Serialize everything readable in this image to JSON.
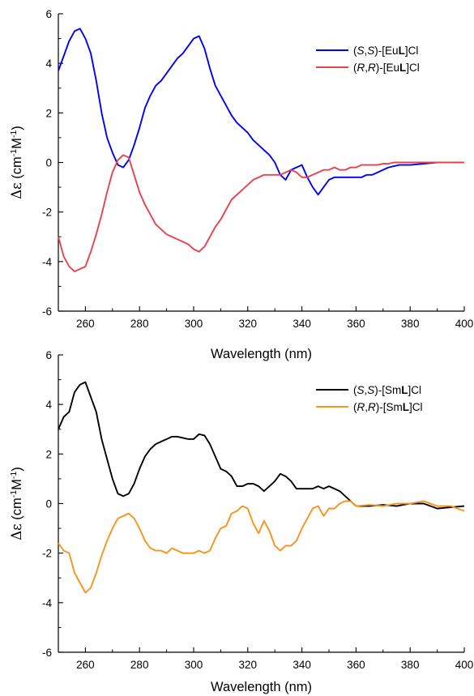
{
  "chart_data": [
    {
      "type": "line",
      "xlabel": "Wavelength (nm)",
      "ylabel": {
        "symbol": "Δε",
        "text": " (cm",
        "sup1": "-1",
        "mid": "M",
        "sup2": "-1",
        "end": ")"
      },
      "xlim": [
        250,
        400
      ],
      "ylim": [
        -6,
        6
      ],
      "xticks": [
        260,
        280,
        300,
        320,
        340,
        360,
        380,
        400
      ],
      "yticks": [
        -6,
        -4,
        -2,
        0,
        2,
        4,
        6
      ],
      "grid": false,
      "legend_position": "top-right",
      "series": [
        {
          "name": "(S,S)-[EuL]Cl",
          "name_parts": [
            {
              "t": "(",
              "s": "n"
            },
            {
              "t": "S",
              "s": "i"
            },
            {
              "t": ",",
              "s": "n"
            },
            {
              "t": "S",
              "s": "i"
            },
            {
              "t": ")-[Eu",
              "s": "n"
            },
            {
              "t": "L",
              "s": "b"
            },
            {
              "t": "]Cl",
              "s": "n"
            }
          ],
          "color": "#0000ff",
          "x": [
            250,
            252,
            254,
            256,
            258,
            260,
            262,
            264,
            266,
            268,
            270,
            272,
            274,
            276,
            278,
            280,
            282,
            284,
            286,
            288,
            290,
            292,
            294,
            296,
            298,
            300,
            302,
            304,
            306,
            308,
            310,
            312,
            314,
            316,
            318,
            320,
            322,
            324,
            326,
            328,
            330,
            332,
            334,
            336,
            338,
            340,
            342,
            344,
            346,
            348,
            350,
            352,
            354,
            356,
            358,
            360,
            362,
            364,
            366,
            368,
            370,
            372,
            374,
            376,
            378,
            380,
            385,
            390,
            395,
            400
          ],
          "y": [
            3.7,
            4.3,
            4.9,
            5.3,
            5.4,
            5.0,
            4.4,
            3.3,
            2.0,
            1.0,
            0.4,
            -0.1,
            -0.2,
            0.1,
            0.7,
            1.4,
            2.2,
            2.7,
            3.1,
            3.3,
            3.6,
            3.9,
            4.2,
            4.4,
            4.7,
            5.0,
            5.1,
            4.6,
            3.8,
            3.1,
            2.7,
            2.3,
            1.9,
            1.6,
            1.4,
            1.2,
            0.9,
            0.7,
            0.5,
            0.3,
            0.0,
            -0.5,
            -0.7,
            -0.3,
            -0.2,
            -0.1,
            -0.6,
            -1.0,
            -1.3,
            -1.0,
            -0.7,
            -0.6,
            -0.6,
            -0.6,
            -0.6,
            -0.6,
            -0.6,
            -0.5,
            -0.5,
            -0.4,
            -0.3,
            -0.2,
            -0.15,
            -0.1,
            -0.1,
            -0.1,
            -0.05,
            0.0,
            0.0,
            0.0
          ]
        },
        {
          "name": "(R,R)-[EuL]Cl",
          "name_parts": [
            {
              "t": "(",
              "s": "n"
            },
            {
              "t": "R",
              "s": "i"
            },
            {
              "t": ",",
              "s": "n"
            },
            {
              "t": "R",
              "s": "i"
            },
            {
              "t": ")-[Eu",
              "s": "n"
            },
            {
              "t": "L",
              "s": "b"
            },
            {
              "t": "]Cl",
              "s": "n"
            }
          ],
          "color": "#e8434a",
          "x": [
            250,
            252,
            254,
            256,
            258,
            260,
            262,
            264,
            266,
            268,
            270,
            272,
            274,
            276,
            278,
            280,
            282,
            284,
            286,
            288,
            290,
            292,
            294,
            296,
            298,
            300,
            302,
            304,
            306,
            308,
            310,
            312,
            314,
            316,
            318,
            320,
            322,
            324,
            326,
            328,
            330,
            332,
            334,
            336,
            338,
            340,
            342,
            344,
            346,
            348,
            350,
            352,
            354,
            356,
            358,
            360,
            362,
            364,
            366,
            368,
            370,
            372,
            374,
            376,
            378,
            380,
            385,
            390,
            395,
            400
          ],
          "y": [
            -3.0,
            -3.8,
            -4.2,
            -4.4,
            -4.3,
            -4.2,
            -3.6,
            -2.9,
            -2.1,
            -1.2,
            -0.4,
            0.1,
            0.3,
            0.2,
            -0.5,
            -1.2,
            -1.7,
            -2.1,
            -2.5,
            -2.7,
            -2.9,
            -3.0,
            -3.1,
            -3.2,
            -3.3,
            -3.5,
            -3.6,
            -3.4,
            -3.0,
            -2.6,
            -2.3,
            -1.9,
            -1.5,
            -1.3,
            -1.1,
            -0.9,
            -0.7,
            -0.6,
            -0.5,
            -0.5,
            -0.5,
            -0.5,
            -0.4,
            -0.3,
            -0.4,
            -0.6,
            -0.6,
            -0.5,
            -0.4,
            -0.3,
            -0.3,
            -0.2,
            -0.3,
            -0.3,
            -0.2,
            -0.2,
            -0.1,
            -0.1,
            -0.1,
            -0.1,
            -0.05,
            -0.05,
            0.0,
            0.0,
            0.0,
            0.0,
            0.0,
            0.0,
            0.0,
            0.0
          ]
        }
      ]
    },
    {
      "type": "line",
      "xlabel": "Wavelength (nm)",
      "ylabel": {
        "symbol": "Δε",
        "text": " (cm",
        "sup1": "-1",
        "mid": "M",
        "sup2": "-1",
        "end": ")"
      },
      "xlim": [
        250,
        400
      ],
      "ylim": [
        -6,
        6
      ],
      "xticks": [
        260,
        280,
        300,
        320,
        340,
        360,
        380,
        400
      ],
      "yticks": [
        -6,
        -4,
        -2,
        0,
        2,
        4,
        6
      ],
      "grid": false,
      "legend_position": "top-right",
      "series": [
        {
          "name": "(S,S)-[SmL]Cl",
          "name_parts": [
            {
              "t": "(",
              "s": "n"
            },
            {
              "t": "S",
              "s": "i"
            },
            {
              "t": ",",
              "s": "n"
            },
            {
              "t": "S",
              "s": "i"
            },
            {
              "t": ")-[Sm",
              "s": "n"
            },
            {
              "t": "L",
              "s": "b"
            },
            {
              "t": "]Cl",
              "s": "n"
            }
          ],
          "color": "#000000",
          "x": [
            250,
            252,
            254,
            256,
            258,
            260,
            262,
            264,
            266,
            268,
            270,
            272,
            274,
            276,
            278,
            280,
            282,
            284,
            286,
            288,
            290,
            292,
            294,
            296,
            298,
            300,
            302,
            304,
            306,
            308,
            310,
            312,
            314,
            316,
            318,
            320,
            322,
            324,
            326,
            328,
            330,
            332,
            334,
            336,
            338,
            340,
            342,
            344,
            346,
            348,
            350,
            352,
            354,
            356,
            358,
            360,
            365,
            370,
            375,
            380,
            385,
            390,
            395,
            400
          ],
          "y": [
            3.0,
            3.5,
            3.7,
            4.5,
            4.8,
            4.9,
            4.3,
            3.7,
            2.6,
            1.8,
            1.0,
            0.4,
            0.3,
            0.4,
            0.8,
            1.4,
            1.9,
            2.2,
            2.4,
            2.5,
            2.6,
            2.7,
            2.7,
            2.65,
            2.6,
            2.6,
            2.8,
            2.75,
            2.4,
            1.9,
            1.4,
            1.3,
            1.1,
            0.7,
            0.7,
            0.8,
            0.8,
            0.7,
            0.5,
            0.7,
            0.9,
            1.2,
            1.1,
            0.9,
            0.6,
            0.6,
            0.6,
            0.6,
            0.7,
            0.6,
            0.7,
            0.6,
            0.5,
            0.3,
            0.1,
            -0.1,
            -0.1,
            -0.05,
            -0.1,
            0.0,
            0.0,
            -0.2,
            -0.15,
            -0.1
          ]
        },
        {
          "name": "(R,R)-[SmL]Cl",
          "name_parts": [
            {
              "t": "(",
              "s": "n"
            },
            {
              "t": "R",
              "s": "i"
            },
            {
              "t": ",",
              "s": "n"
            },
            {
              "t": "R",
              "s": "i"
            },
            {
              "t": ")-[Sm",
              "s": "n"
            },
            {
              "t": "L",
              "s": "b"
            },
            {
              "t": "]Cl",
              "s": "n"
            }
          ],
          "color": "#f7941d",
          "x": [
            250,
            252,
            254,
            256,
            258,
            260,
            262,
            264,
            266,
            268,
            270,
            272,
            274,
            276,
            278,
            280,
            282,
            284,
            286,
            288,
            290,
            292,
            294,
            296,
            298,
            300,
            302,
            304,
            306,
            308,
            310,
            312,
            314,
            316,
            318,
            320,
            322,
            324,
            326,
            328,
            330,
            332,
            334,
            336,
            338,
            340,
            342,
            344,
            346,
            348,
            350,
            352,
            354,
            356,
            358,
            360,
            365,
            370,
            375,
            380,
            385,
            390,
            395,
            400
          ],
          "y": [
            -1.6,
            -1.9,
            -2.0,
            -2.8,
            -3.2,
            -3.6,
            -3.4,
            -2.8,
            -2.1,
            -1.5,
            -1.0,
            -0.6,
            -0.5,
            -0.4,
            -0.6,
            -1.0,
            -1.5,
            -1.8,
            -1.9,
            -1.9,
            -2.0,
            -1.8,
            -1.9,
            -2.0,
            -2.0,
            -2.0,
            -1.9,
            -2.0,
            -1.9,
            -1.4,
            -1.0,
            -0.9,
            -0.4,
            -0.3,
            -0.1,
            -0.2,
            -0.8,
            -1.2,
            -0.7,
            -1.1,
            -1.7,
            -1.9,
            -1.7,
            -1.7,
            -1.5,
            -1.0,
            -0.6,
            -0.2,
            -0.1,
            -0.5,
            -0.2,
            -0.2,
            0.0,
            0.1,
            0.1,
            -0.1,
            -0.05,
            -0.1,
            0.0,
            0.0,
            0.1,
            -0.1,
            -0.1,
            -0.3
          ]
        }
      ]
    }
  ]
}
